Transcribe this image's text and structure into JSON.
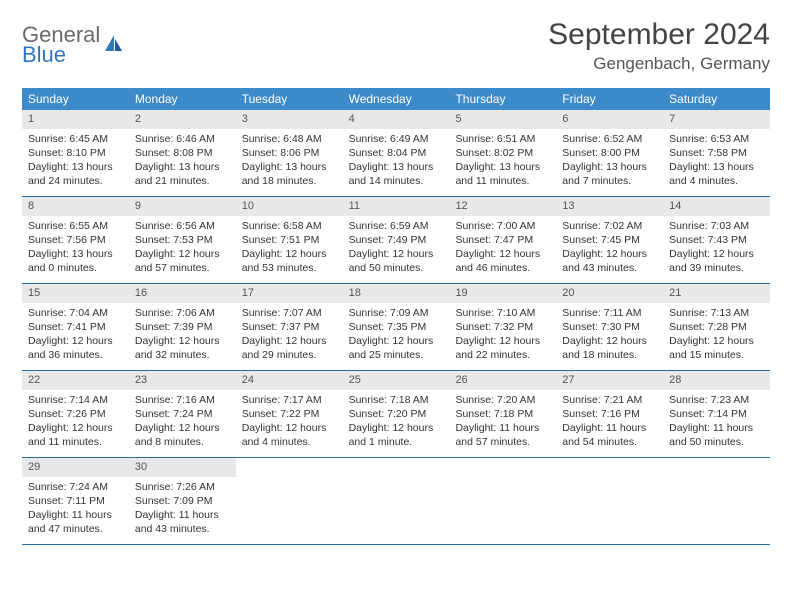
{
  "logo": {
    "general": "General",
    "blue": "Blue"
  },
  "title": "September 2024",
  "location": "Gengenbach, Germany",
  "weekdays": [
    "Sunday",
    "Monday",
    "Tuesday",
    "Wednesday",
    "Thursday",
    "Friday",
    "Saturday"
  ],
  "colors": {
    "header_bg": "#3c8ac9",
    "header_text": "#ffffff",
    "daynum_bg": "#e8e8e8",
    "week_border": "#2a6ea8",
    "logo_gray": "#6b6b6b",
    "logo_blue": "#2f78bd"
  },
  "days": [
    {
      "n": "1",
      "sunrise": "Sunrise: 6:45 AM",
      "sunset": "Sunset: 8:10 PM",
      "day1": "Daylight: 13 hours",
      "day2": "and 24 minutes."
    },
    {
      "n": "2",
      "sunrise": "Sunrise: 6:46 AM",
      "sunset": "Sunset: 8:08 PM",
      "day1": "Daylight: 13 hours",
      "day2": "and 21 minutes."
    },
    {
      "n": "3",
      "sunrise": "Sunrise: 6:48 AM",
      "sunset": "Sunset: 8:06 PM",
      "day1": "Daylight: 13 hours",
      "day2": "and 18 minutes."
    },
    {
      "n": "4",
      "sunrise": "Sunrise: 6:49 AM",
      "sunset": "Sunset: 8:04 PM",
      "day1": "Daylight: 13 hours",
      "day2": "and 14 minutes."
    },
    {
      "n": "5",
      "sunrise": "Sunrise: 6:51 AM",
      "sunset": "Sunset: 8:02 PM",
      "day1": "Daylight: 13 hours",
      "day2": "and 11 minutes."
    },
    {
      "n": "6",
      "sunrise": "Sunrise: 6:52 AM",
      "sunset": "Sunset: 8:00 PM",
      "day1": "Daylight: 13 hours",
      "day2": "and 7 minutes."
    },
    {
      "n": "7",
      "sunrise": "Sunrise: 6:53 AM",
      "sunset": "Sunset: 7:58 PM",
      "day1": "Daylight: 13 hours",
      "day2": "and 4 minutes."
    },
    {
      "n": "8",
      "sunrise": "Sunrise: 6:55 AM",
      "sunset": "Sunset: 7:56 PM",
      "day1": "Daylight: 13 hours",
      "day2": "and 0 minutes."
    },
    {
      "n": "9",
      "sunrise": "Sunrise: 6:56 AM",
      "sunset": "Sunset: 7:53 PM",
      "day1": "Daylight: 12 hours",
      "day2": "and 57 minutes."
    },
    {
      "n": "10",
      "sunrise": "Sunrise: 6:58 AM",
      "sunset": "Sunset: 7:51 PM",
      "day1": "Daylight: 12 hours",
      "day2": "and 53 minutes."
    },
    {
      "n": "11",
      "sunrise": "Sunrise: 6:59 AM",
      "sunset": "Sunset: 7:49 PM",
      "day1": "Daylight: 12 hours",
      "day2": "and 50 minutes."
    },
    {
      "n": "12",
      "sunrise": "Sunrise: 7:00 AM",
      "sunset": "Sunset: 7:47 PM",
      "day1": "Daylight: 12 hours",
      "day2": "and 46 minutes."
    },
    {
      "n": "13",
      "sunrise": "Sunrise: 7:02 AM",
      "sunset": "Sunset: 7:45 PM",
      "day1": "Daylight: 12 hours",
      "day2": "and 43 minutes."
    },
    {
      "n": "14",
      "sunrise": "Sunrise: 7:03 AM",
      "sunset": "Sunset: 7:43 PM",
      "day1": "Daylight: 12 hours",
      "day2": "and 39 minutes."
    },
    {
      "n": "15",
      "sunrise": "Sunrise: 7:04 AM",
      "sunset": "Sunset: 7:41 PM",
      "day1": "Daylight: 12 hours",
      "day2": "and 36 minutes."
    },
    {
      "n": "16",
      "sunrise": "Sunrise: 7:06 AM",
      "sunset": "Sunset: 7:39 PM",
      "day1": "Daylight: 12 hours",
      "day2": "and 32 minutes."
    },
    {
      "n": "17",
      "sunrise": "Sunrise: 7:07 AM",
      "sunset": "Sunset: 7:37 PM",
      "day1": "Daylight: 12 hours",
      "day2": "and 29 minutes."
    },
    {
      "n": "18",
      "sunrise": "Sunrise: 7:09 AM",
      "sunset": "Sunset: 7:35 PM",
      "day1": "Daylight: 12 hours",
      "day2": "and 25 minutes."
    },
    {
      "n": "19",
      "sunrise": "Sunrise: 7:10 AM",
      "sunset": "Sunset: 7:32 PM",
      "day1": "Daylight: 12 hours",
      "day2": "and 22 minutes."
    },
    {
      "n": "20",
      "sunrise": "Sunrise: 7:11 AM",
      "sunset": "Sunset: 7:30 PM",
      "day1": "Daylight: 12 hours",
      "day2": "and 18 minutes."
    },
    {
      "n": "21",
      "sunrise": "Sunrise: 7:13 AM",
      "sunset": "Sunset: 7:28 PM",
      "day1": "Daylight: 12 hours",
      "day2": "and 15 minutes."
    },
    {
      "n": "22",
      "sunrise": "Sunrise: 7:14 AM",
      "sunset": "Sunset: 7:26 PM",
      "day1": "Daylight: 12 hours",
      "day2": "and 11 minutes."
    },
    {
      "n": "23",
      "sunrise": "Sunrise: 7:16 AM",
      "sunset": "Sunset: 7:24 PM",
      "day1": "Daylight: 12 hours",
      "day2": "and 8 minutes."
    },
    {
      "n": "24",
      "sunrise": "Sunrise: 7:17 AM",
      "sunset": "Sunset: 7:22 PM",
      "day1": "Daylight: 12 hours",
      "day2": "and 4 minutes."
    },
    {
      "n": "25",
      "sunrise": "Sunrise: 7:18 AM",
      "sunset": "Sunset: 7:20 PM",
      "day1": "Daylight: 12 hours",
      "day2": "and 1 minute."
    },
    {
      "n": "26",
      "sunrise": "Sunrise: 7:20 AM",
      "sunset": "Sunset: 7:18 PM",
      "day1": "Daylight: 11 hours",
      "day2": "and 57 minutes."
    },
    {
      "n": "27",
      "sunrise": "Sunrise: 7:21 AM",
      "sunset": "Sunset: 7:16 PM",
      "day1": "Daylight: 11 hours",
      "day2": "and 54 minutes."
    },
    {
      "n": "28",
      "sunrise": "Sunrise: 7:23 AM",
      "sunset": "Sunset: 7:14 PM",
      "day1": "Daylight: 11 hours",
      "day2": "and 50 minutes."
    },
    {
      "n": "29",
      "sunrise": "Sunrise: 7:24 AM",
      "sunset": "Sunset: 7:11 PM",
      "day1": "Daylight: 11 hours",
      "day2": "and 47 minutes."
    },
    {
      "n": "30",
      "sunrise": "Sunrise: 7:26 AM",
      "sunset": "Sunset: 7:09 PM",
      "day1": "Daylight: 11 hours",
      "day2": "and 43 minutes."
    }
  ]
}
